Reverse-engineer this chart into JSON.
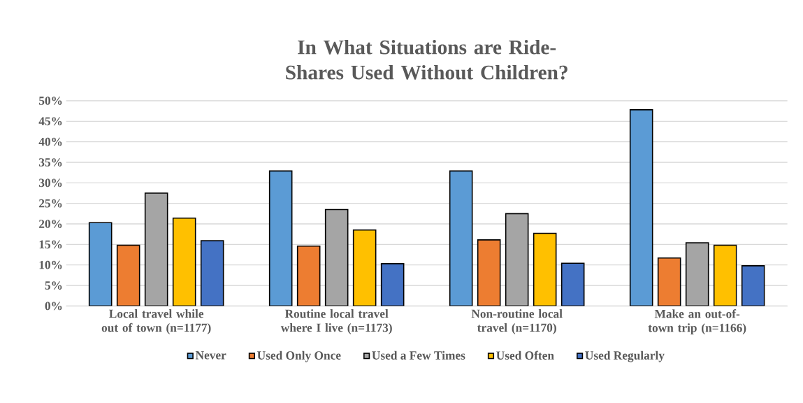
{
  "chart_data": {
    "type": "bar",
    "title": "In What Situations are Ride-Shares Used Without Children?",
    "categories": [
      "Local travel while out of town (n=1177)",
      "Routine local travel where I live (n=1173)",
      "Non-routine local travel (n=1170)",
      "Make an out-of-town trip (n=1166)"
    ],
    "series": [
      {
        "name": "Never",
        "color": "#5b9bd5",
        "values": [
          20.3,
          32.9,
          32.9,
          47.8
        ]
      },
      {
        "name": "Used Only Once",
        "color": "#ed7d31",
        "values": [
          14.8,
          14.6,
          16.1,
          11.7
        ]
      },
      {
        "name": "Used a Few Times",
        "color": "#a5a5a5",
        "values": [
          27.5,
          23.5,
          22.5,
          15.4
        ]
      },
      {
        "name": "Used Often",
        "color": "#ffc000",
        "values": [
          21.4,
          18.5,
          17.7,
          14.8
        ]
      },
      {
        "name": "Used Regularly",
        "color": "#4472c4",
        "values": [
          15.9,
          10.3,
          10.4,
          9.8
        ]
      }
    ],
    "ylim": [
      0,
      50
    ],
    "yticks": [
      {
        "value": 0,
        "label": "0%"
      },
      {
        "value": 5,
        "label": "5%"
      },
      {
        "value": 10,
        "label": "10%"
      },
      {
        "value": 15,
        "label": "15%"
      },
      {
        "value": 20,
        "label": "20%"
      },
      {
        "value": 25,
        "label": "25%"
      },
      {
        "value": 30,
        "label": "30%"
      },
      {
        "value": 35,
        "label": "35%"
      },
      {
        "value": 40,
        "label": "40%"
      },
      {
        "value": 45,
        "label": "45%"
      },
      {
        "value": 50,
        "label": "50%"
      }
    ],
    "grid": "y",
    "legend": "bottom"
  }
}
